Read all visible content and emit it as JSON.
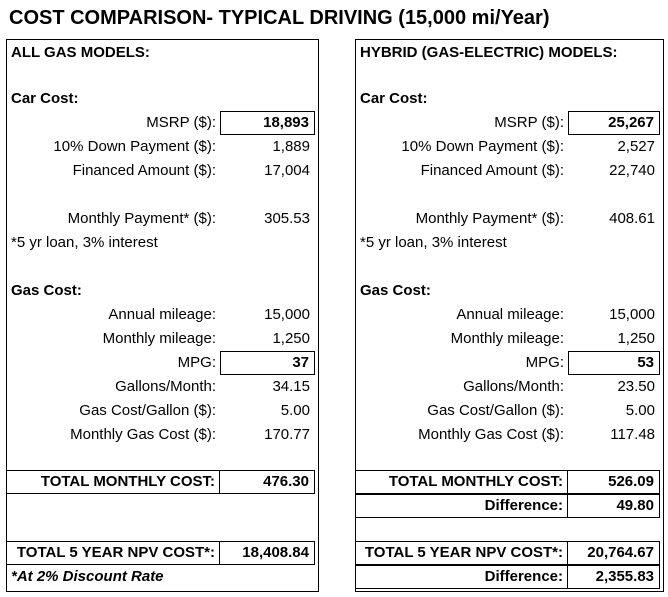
{
  "title": "COST COMPARISON- TYPICAL DRIVING (15,000 mi/Year)",
  "panels": [
    {
      "header": "ALL GAS MODELS:",
      "car_cost_label": "Car Cost:",
      "msrp_label": "MSRP ($):",
      "msrp": "18,893",
      "down_label": "10% Down Payment ($):",
      "down": "1,889",
      "financed_label": "Financed Amount ($):",
      "financed": "17,004",
      "payment_label": "Monthly Payment* ($):",
      "payment": "305.53",
      "loan_note": "*5 yr loan, 3% interest",
      "gas_cost_label": "Gas Cost:",
      "annual_label": "Annual mileage:",
      "annual": "15,000",
      "monthly_miles_label": "Monthly mileage:",
      "monthly_miles": "1,250",
      "mpg_label": "MPG:",
      "mpg": "37",
      "gallons_label": "Gallons/Month:",
      "gallons": "34.15",
      "gas_gallon_label": "Gas Cost/Gallon ($):",
      "gas_gallon": "5.00",
      "monthly_gas_label": "Monthly Gas Cost ($):",
      "monthly_gas": "170.77",
      "total_monthly_label": "TOTAL MONTHLY COST:",
      "total_monthly": "476.30",
      "npv_label": "TOTAL 5 YEAR NPV COST*:",
      "npv": "18,408.84",
      "discount_note": "*At 2% Discount Rate"
    },
    {
      "header": "HYBRID (GAS-ELECTRIC) MODELS:",
      "car_cost_label": "Car Cost:",
      "msrp_label": "MSRP ($):",
      "msrp": "25,267",
      "down_label": "10% Down Payment ($):",
      "down": "2,527",
      "financed_label": "Financed Amount ($):",
      "financed": "22,740",
      "payment_label": "Monthly Payment* ($):",
      "payment": "408.61",
      "loan_note": "*5 yr loan, 3% interest",
      "gas_cost_label": "Gas Cost:",
      "annual_label": "Annual mileage:",
      "annual": "15,000",
      "monthly_miles_label": "Monthly mileage:",
      "monthly_miles": "1,250",
      "mpg_label": "MPG:",
      "mpg": "53",
      "gallons_label": "Gallons/Month:",
      "gallons": "23.50",
      "gas_gallon_label": "Gas Cost/Gallon ($):",
      "gas_gallon": "5.00",
      "monthly_gas_label": "Monthly Gas Cost ($):",
      "monthly_gas": "117.48",
      "total_monthly_label": "TOTAL MONTHLY COST:",
      "total_monthly": "526.09",
      "diff_monthly_label": "Difference:",
      "diff_monthly": "49.80",
      "npv_label": "TOTAL 5 YEAR NPV COST*:",
      "npv": "20,764.67",
      "diff_npv_label": "Difference:",
      "diff_npv": "2,355.83"
    }
  ]
}
